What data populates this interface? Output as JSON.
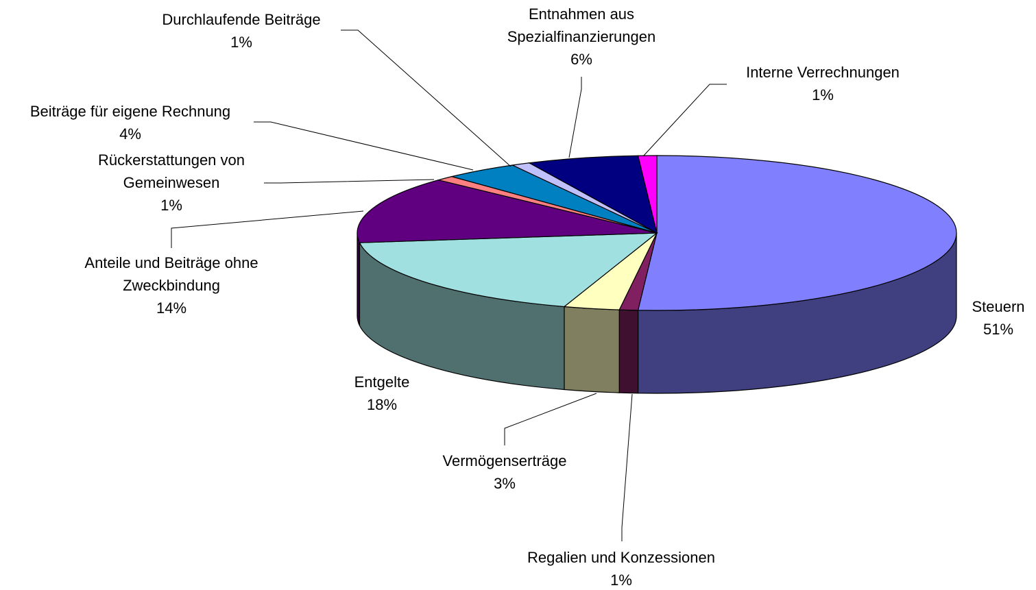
{
  "chart_data": {
    "type": "pie3d",
    "categories": [
      [
        "Steuern"
      ],
      [
        "Regalien und Konzessionen"
      ],
      [
        "Vermögenserträge"
      ],
      [
        "Entgelte"
      ],
      [
        "Anteile und Beiträge ohne",
        "Zweckbindung"
      ],
      [
        "Rückerstattungen von",
        "Gemeinwesen"
      ],
      [
        "Beiträge für eigene Rechnung"
      ],
      [
        "Durchlaufende Beiträge"
      ],
      [
        "Entnahmen aus",
        "Spezialfinanzierungen"
      ],
      [
        "Interne Verrechnungen"
      ]
    ],
    "values": [
      51,
      1,
      3,
      18,
      14,
      1,
      4,
      1,
      6,
      1
    ],
    "value_labels": [
      "51%",
      "1%",
      "3%",
      "18%",
      "14%",
      "1%",
      "4%",
      "1%",
      "6%",
      "1%"
    ],
    "colors": [
      "#8080ff",
      "#802060",
      "#ffffc0",
      "#a0e0e0",
      "#600080",
      "#ff8080",
      "#0080c0",
      "#c0c0ff",
      "#000080",
      "#ff00ff"
    ]
  }
}
